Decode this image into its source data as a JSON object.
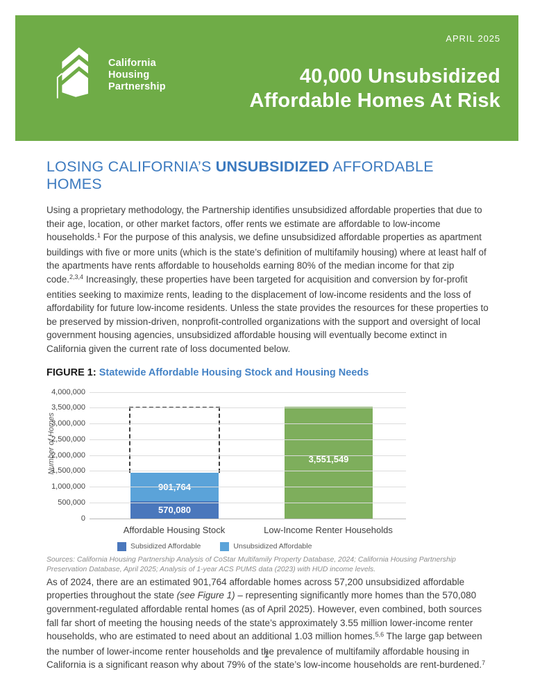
{
  "header": {
    "date": "APRIL 2025",
    "logo": {
      "line1": "California",
      "line2": "Housing",
      "line3": "Partnership"
    },
    "title_line1": "40,000 Unsubsidized",
    "title_line2": "Affordable Homes At Risk"
  },
  "section": {
    "heading": {
      "pre": "LOSING CALIFORNIA’S ",
      "bold": "UNSUBSIDIZED",
      "post": " AFFORDABLE HOMES"
    },
    "para1": {
      "seg1": "Using a proprietary methodology, the Partnership identifies unsubsidized affordable properties that due to their age, location, or other market factors, offer rents we estimate are affordable to low-income households.",
      "sup1": "1",
      "seg2": " For the purpose of this analysis, we define unsubsidized affordable properties as apartment buildings with five or more units (which is the state’s definition of multifamily housing) where at least half of the apartments have rents affordable to households earning 80% of the median income for that zip code.",
      "sup2": "2,3,4",
      "seg3": " Increasingly, these properties have been targeted for acquisition and conversion by for-profit entities seeking to maximize rents, leading to the displacement of low-income residents and the loss of affordability for future low-income residents. Unless the state provides the resources for these properties to be preserved by mission-driven, nonprofit-controlled organizations with the support and oversight of local government housing agencies, unsubsidized affordable housing will eventually become extinct in California given the current rate of loss documented below."
    },
    "figure_label": "FIGURE 1:",
    "figure_title": "Statewide Affordable Housing Stock and Housing Needs",
    "sources": "Sources: California Housing Partnership Analysis of CoStar Multifamily Property Database, 2024; California Housing Partnership Preservation Database, April 2025; Analysis of 1-year ACS PUMS data (2023) with HUD income levels.",
    "para2": {
      "seg1": "As of 2024, there are an estimated 901,764 affordable homes across 57,200 unsubsidized affordable properties throughout the state ",
      "italic": "(see Figure 1)",
      "seg2": " – representing significantly more homes than the 570,080 government-regulated affordable rental homes (as of April 2025). However, even combined, both sources fall far short of meeting the housing needs of the state’s approximately 3.55 million lower-income renter households, who are estimated to need about an additional 1.03 million homes.",
      "sup1": "5,6",
      "seg3": " The large gap between the number of lower-income renter households and the prevalence of multifamily affordable housing in California is a significant reason why about 79% of the state’s low-income households are rent-burdened.",
      "sup2": "7"
    }
  },
  "chart_data": {
    "type": "bar",
    "title": "Statewide Affordable Housing Stock and Housing Needs",
    "ylabel": "Number of Homes",
    "ylim": [
      0,
      4000000
    ],
    "grid": true,
    "legend_position": "bottom-left",
    "y_ticks": [
      {
        "value": 0,
        "label": "0"
      },
      {
        "value": 500000,
        "label": "500,000"
      },
      {
        "value": 1000000,
        "label": "1,000,000"
      },
      {
        "value": 1500000,
        "label": "1,500,000"
      },
      {
        "value": 2000000,
        "label": "2,000,000"
      },
      {
        "value": 2500000,
        "label": "2,500,000"
      },
      {
        "value": 3000000,
        "label": "3,000,000"
      },
      {
        "value": 3500000,
        "label": "3,500,000"
      },
      {
        "value": 4000000,
        "label": "4,000,000"
      }
    ],
    "categories": [
      "Affordable Housing Stock",
      "Low-Income Renter Households"
    ],
    "series": [
      {
        "name": "Subsidized Affordable",
        "color": "#4a77bc",
        "category": 0,
        "value": 570080,
        "label": "570,080"
      },
      {
        "name": "Unsubsidized Affordable",
        "color": "#5ba3d9",
        "category": 0,
        "value": 901764,
        "label": "901,764"
      },
      {
        "name": "Low-Income Renter Households",
        "color": "#7eae5c",
        "category": 1,
        "value": 3551549,
        "label": "3,551,549"
      }
    ],
    "annotations": {
      "dashed_box": {
        "top_value": 3551549,
        "over_category": 0,
        "meaning": "unmet housing need above existing affordable stock"
      }
    },
    "legend": [
      "Subsidized Affordable",
      "Unsubsidized Affordable"
    ]
  },
  "colors": {
    "banner_green": "#6fac47",
    "bar_green": "#7eae5c",
    "subsidized_blue": "#4a77bc",
    "unsubsidized_blue": "#5ba3d9",
    "heading_blue": "#3c7abf",
    "figure_title_blue": "#4583c6"
  },
  "page": {
    "number": "1"
  }
}
